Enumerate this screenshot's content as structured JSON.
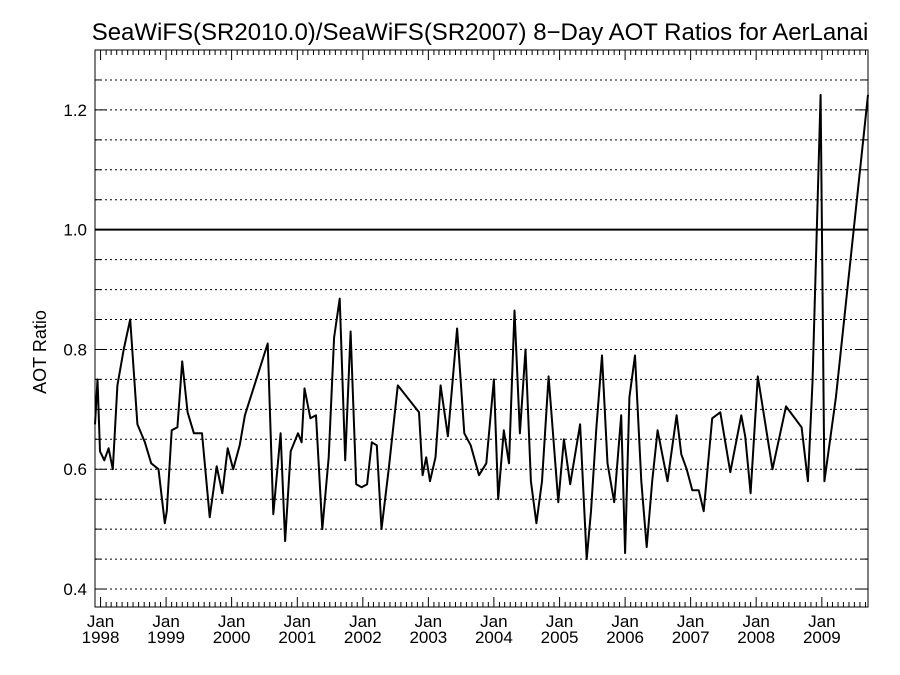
{
  "chart_data": {
    "type": "line",
    "title": "SeaWiFS(SR2010.0)/SeaWiFS(SR2007) 8−Day AOT Ratios for AerLanai",
    "xlabel": "",
    "ylabel": "AOT Ratio",
    "xlim": [
      "1997-12-01",
      "2009-09-15"
    ],
    "ylim": [
      0.37,
      1.3
    ],
    "y_ticks": [
      0.4,
      0.6,
      0.8,
      1.0,
      1.2
    ],
    "y_tick_labels": [
      "0.4",
      "0.6",
      "0.8",
      "1.0",
      "1.2"
    ],
    "y_minor_step": 0.05,
    "x_ticks": [
      {
        "date": "1998-01-01",
        "month": "Jan",
        "year": "1998"
      },
      {
        "date": "1999-01-01",
        "month": "Jan",
        "year": "1999"
      },
      {
        "date": "2000-01-01",
        "month": "Jan",
        "year": "2000"
      },
      {
        "date": "2001-01-01",
        "month": "Jan",
        "year": "2001"
      },
      {
        "date": "2002-01-01",
        "month": "Jan",
        "year": "2002"
      },
      {
        "date": "2003-01-01",
        "month": "Jan",
        "year": "2003"
      },
      {
        "date": "2004-01-01",
        "month": "Jan",
        "year": "2004"
      },
      {
        "date": "2005-01-01",
        "month": "Jan",
        "year": "2005"
      },
      {
        "date": "2006-01-01",
        "month": "Jan",
        "year": "2006"
      },
      {
        "date": "2007-01-01",
        "month": "Jan",
        "year": "2007"
      },
      {
        "date": "2008-01-01",
        "month": "Jan",
        "year": "2008"
      },
      {
        "date": "2009-01-01",
        "month": "Jan",
        "year": "2009"
      }
    ],
    "grid": "dotted horizontal",
    "reference_line": 1.0,
    "series": [
      {
        "x": [
          "1997-12-01",
          "1997-12-15",
          "1997-12-29",
          "1998-01-22",
          "1998-02-15",
          "1998-03-10",
          "1998-04-05",
          "1998-05-10",
          "1998-06-15",
          "1998-07-25",
          "1998-09-05",
          "1998-10-10",
          "1998-11-20",
          "1998-12-25",
          "1999-01-05",
          "1999-02-01",
          "1999-03-05",
          "1999-04-01",
          "1999-05-01",
          "1999-06-05",
          "1999-07-20",
          "1999-09-01",
          "1999-10-10",
          "1999-11-10",
          "1999-12-10",
          "2000-01-10",
          "2000-02-15",
          "2000-03-15",
          "2000-07-20",
          "2000-08-20",
          "2000-09-30",
          "2000-10-25",
          "2000-11-25",
          "2001-01-05",
          "2001-01-25",
          "2001-02-10",
          "2001-03-15",
          "2001-04-15",
          "2001-05-20",
          "2001-06-25",
          "2001-07-25",
          "2001-08-25",
          "2001-09-25",
          "2001-10-25",
          "2001-11-25",
          "2001-12-25",
          "2002-01-25",
          "2002-02-20",
          "2002-03-20",
          "2002-04-15",
          "2002-05-25",
          "2002-07-15",
          "2002-11-10",
          "2002-11-30",
          "2002-12-20",
          "2003-01-10",
          "2003-02-10",
          "2003-03-10",
          "2003-04-20",
          "2003-06-10",
          "2003-07-20",
          "2003-08-25",
          "2003-10-10",
          "2003-11-20",
          "2004-01-01",
          "2004-01-25",
          "2004-02-25",
          "2004-03-25",
          "2004-04-25",
          "2004-05-25",
          "2004-06-25",
          "2004-07-25",
          "2004-08-25",
          "2004-09-25",
          "2004-11-01",
          "2004-12-25",
          "2005-01-25",
          "2005-03-01",
          "2005-04-25",
          "2005-06-01",
          "2005-06-25",
          "2005-07-25",
          "2005-08-25",
          "2005-09-25",
          "2005-11-01",
          "2005-12-10",
          "2006-01-01",
          "2006-01-25",
          "2006-02-25",
          "2006-04-01",
          "2006-05-01",
          "2006-06-01",
          "2006-07-01",
          "2006-08-25",
          "2006-10-15",
          "2006-11-10",
          "2006-12-10",
          "2007-01-10",
          "2007-02-15",
          "2007-03-15",
          "2007-05-01",
          "2007-06-15",
          "2007-08-10",
          "2007-10-10",
          "2007-11-01",
          "2007-12-01",
          "2008-01-10",
          "2008-04-01",
          "2008-06-15",
          "2008-09-10",
          "2008-10-15",
          "2008-11-10",
          "2008-12-25",
          "2009-01-15",
          "2009-03-20",
          "2009-09-15"
        ],
        "values": [
          0.675,
          0.75,
          0.63,
          0.615,
          0.635,
          0.6,
          0.74,
          0.8,
          0.85,
          0.675,
          0.645,
          0.61,
          0.6,
          0.51,
          0.53,
          0.665,
          0.67,
          0.78,
          0.695,
          0.66,
          0.66,
          0.52,
          0.605,
          0.56,
          0.635,
          0.6,
          0.64,
          0.69,
          0.81,
          0.525,
          0.66,
          0.48,
          0.63,
          0.66,
          0.645,
          0.735,
          0.685,
          0.69,
          0.5,
          0.62,
          0.82,
          0.885,
          0.615,
          0.83,
          0.575,
          0.57,
          0.575,
          0.645,
          0.64,
          0.5,
          0.6,
          0.74,
          0.695,
          0.59,
          0.62,
          0.58,
          0.62,
          0.74,
          0.655,
          0.835,
          0.66,
          0.64,
          0.59,
          0.61,
          0.75,
          0.55,
          0.665,
          0.61,
          0.865,
          0.66,
          0.8,
          0.58,
          0.51,
          0.58,
          0.755,
          0.545,
          0.65,
          0.575,
          0.675,
          0.45,
          0.53,
          0.67,
          0.79,
          0.61,
          0.545,
          0.69,
          0.46,
          0.72,
          0.79,
          0.58,
          0.47,
          0.58,
          0.665,
          0.58,
          0.69,
          0.625,
          0.6,
          0.565,
          0.565,
          0.53,
          0.685,
          0.695,
          0.595,
          0.69,
          0.655,
          0.56,
          0.755,
          0.6,
          0.705,
          0.67,
          0.58,
          0.745,
          1.225,
          0.58,
          0.72,
          1.225
        ]
      }
    ]
  }
}
